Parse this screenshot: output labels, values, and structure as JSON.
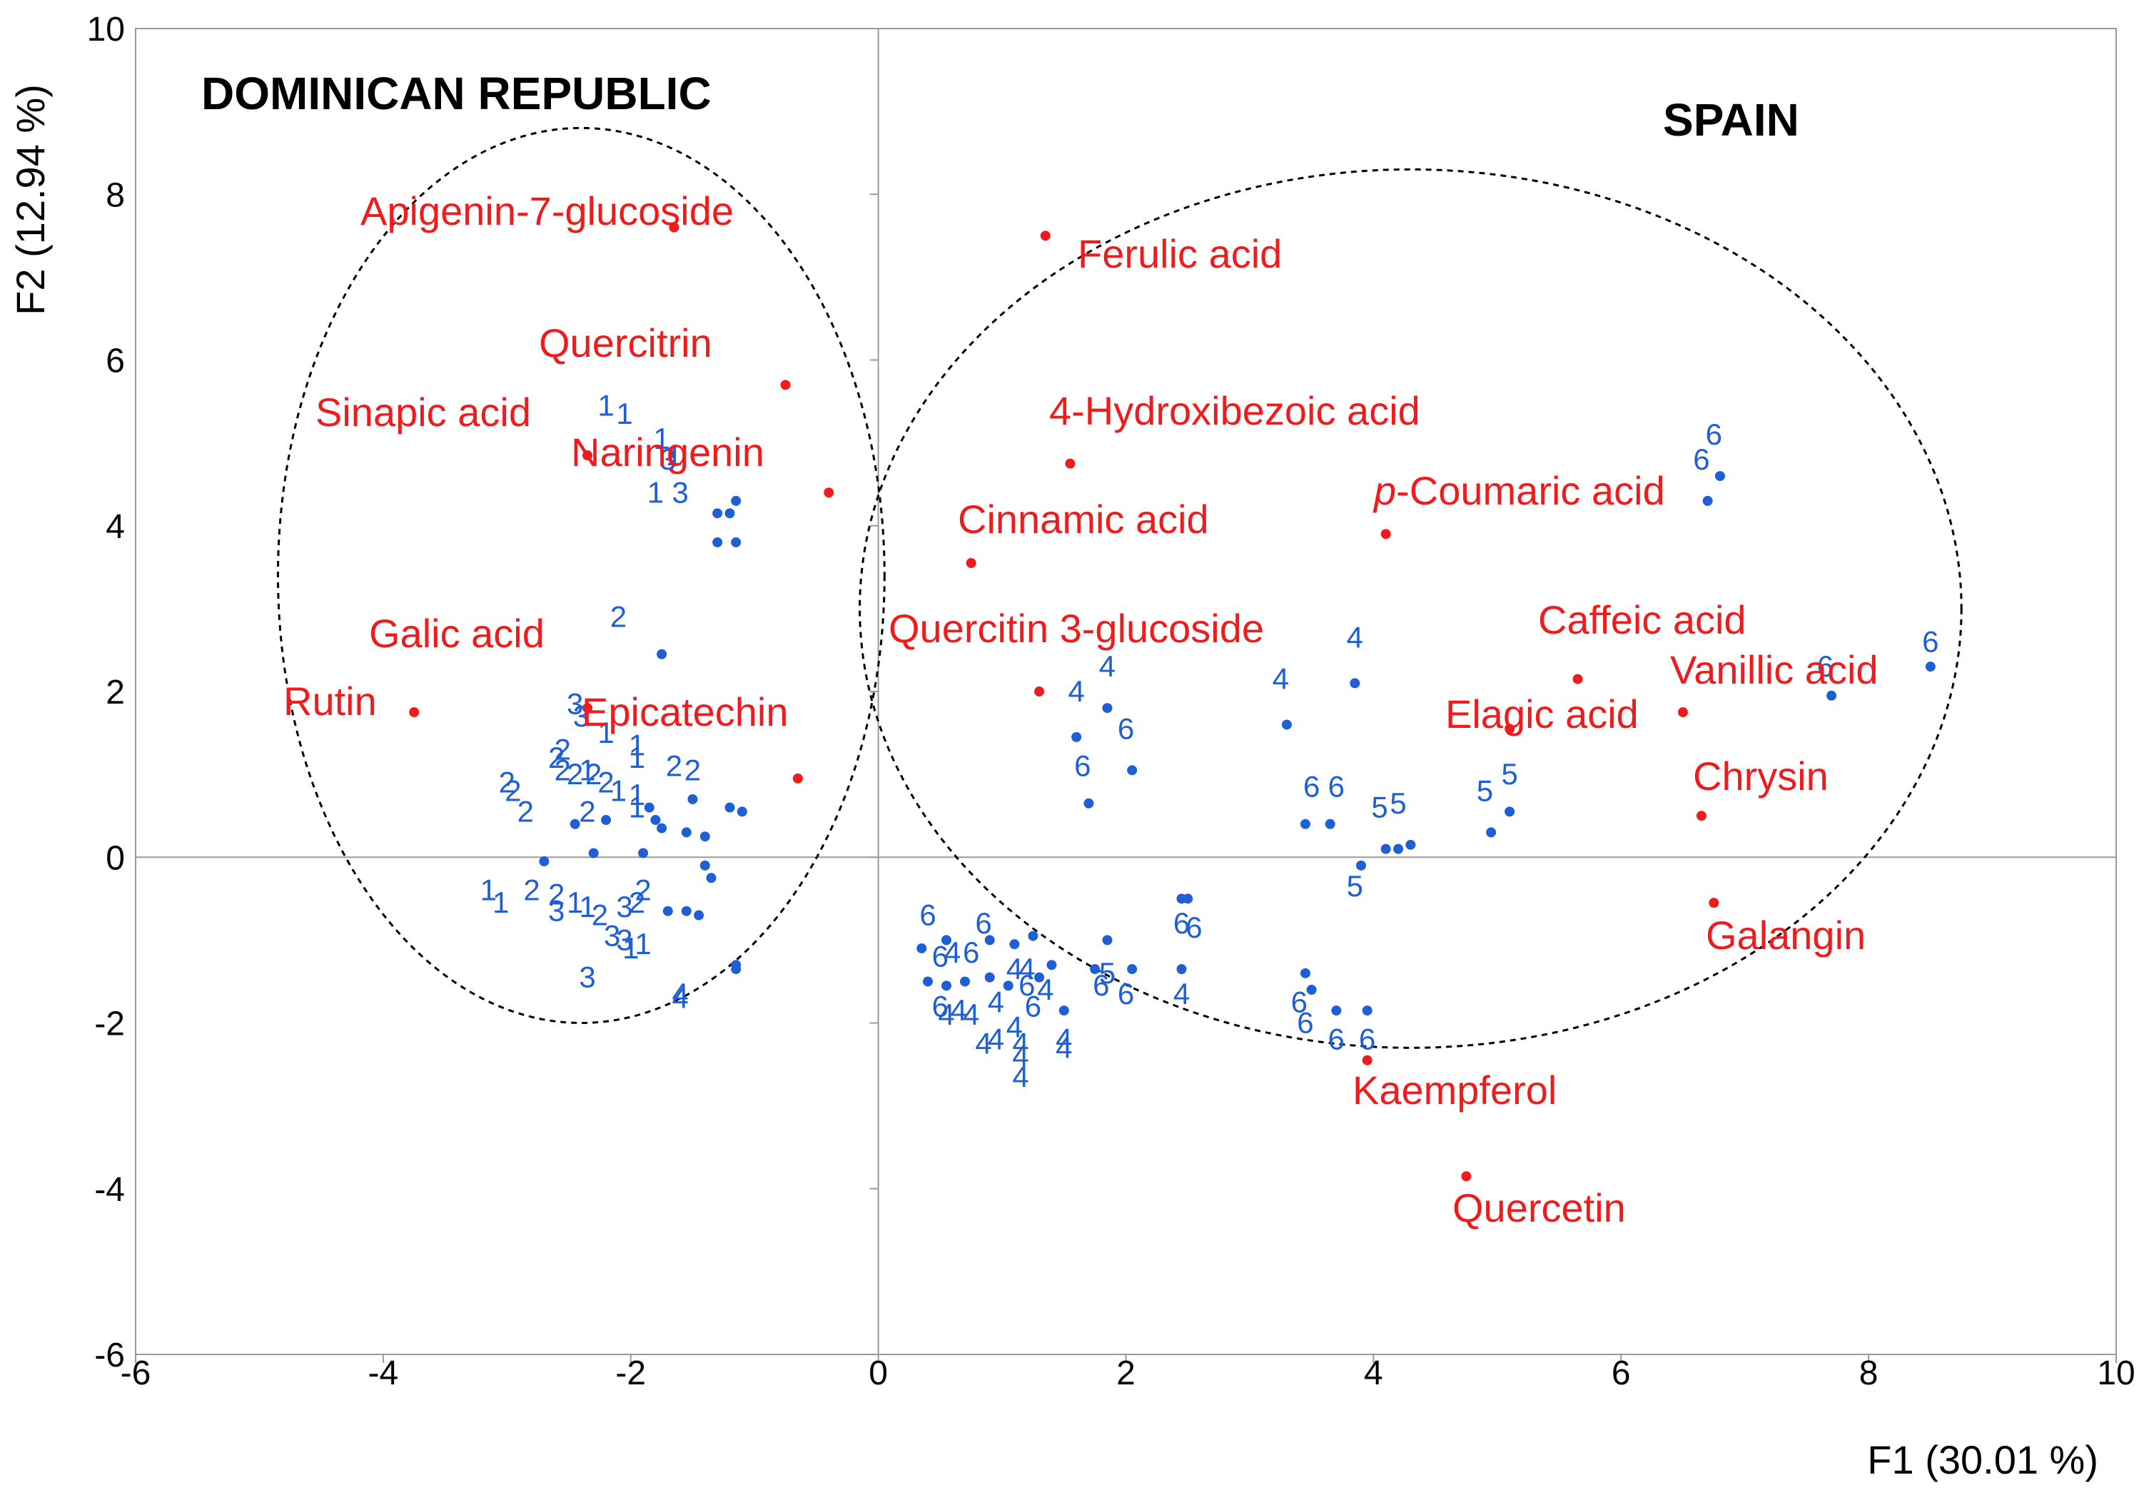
{
  "chart_data": {
    "type": "scatter",
    "title": "",
    "xlabel": "F1 (30.01 %)",
    "ylabel": "F2 (12.94 %)",
    "xlim": [
      -6,
      10
    ],
    "ylim": [
      -6,
      10
    ],
    "x_ticks": [
      "-6",
      "-4",
      "-2",
      "0",
      "2",
      "4",
      "6",
      "8",
      "10"
    ],
    "y_ticks": [
      "10",
      "8",
      "6",
      "4",
      "2",
      "0",
      "-2",
      "-4",
      "-6"
    ],
    "grid": false,
    "colors": {
      "variables": "#ee1c1c",
      "observations": "#1f5fd6",
      "axes": "#9a9a9a",
      "ellipse": "#000000"
    },
    "regions": [
      {
        "name": "DOMINICAN REPUBLIC",
        "center": [
          -2.4,
          3.4
        ],
        "radii": [
          2.45,
          5.4
        ]
      },
      {
        "name": "SPAIN",
        "center": [
          4.3,
          3.0
        ],
        "radii": [
          4.45,
          5.3
        ]
      }
    ],
    "variables": [
      {
        "name": "Apigenin-7-glucoside",
        "x": -1.65,
        "y": 7.6
      },
      {
        "name": "Quercitrin",
        "x": -0.75,
        "y": 5.7
      },
      {
        "name": "Sinapic acid",
        "x": -2.35,
        "y": 4.85
      },
      {
        "name": "Naringenin",
        "x": -0.4,
        "y": 4.4
      },
      {
        "name": "Galic acid",
        "x": -2.35,
        "y": 1.8
      },
      {
        "name": "Rutin",
        "x": -3.75,
        "y": 1.75
      },
      {
        "name": "Epicatechin",
        "x": -0.65,
        "y": 0.95
      },
      {
        "name": "Ferulic acid",
        "x": 1.35,
        "y": 7.5
      },
      {
        "name": "4-Hydroxibezoic acid",
        "x": 1.55,
        "y": 4.75
      },
      {
        "name": "Cinnamic acid",
        "x": 0.75,
        "y": 3.55
      },
      {
        "name": "Quercitin 3-glucoside",
        "x": 1.3,
        "y": 2.0
      },
      {
        "name": "p-Coumaric acid",
        "x": 4.1,
        "y": 3.9
      },
      {
        "name": "Caffeic acid",
        "x": 5.65,
        "y": 2.15
      },
      {
        "name": "Elagic acid",
        "x": 5.1,
        "y": 1.55
      },
      {
        "name": "Vanillic acid",
        "x": 6.5,
        "y": 1.75
      },
      {
        "name": "Chrysin",
        "x": 6.65,
        "y": 0.5
      },
      {
        "name": "Galangin",
        "x": 6.75,
        "y": -0.55
      },
      {
        "name": "Kaempferol",
        "x": 3.95,
        "y": -2.45
      },
      {
        "name": "Quercetin",
        "x": 4.75,
        "y": -3.85
      }
    ],
    "observations": [
      {
        "label": "1",
        "x": -2.2,
        "y": 5.45
      },
      {
        "label": "1",
        "x": -2.05,
        "y": 5.35
      },
      {
        "label": "1",
        "x": -1.75,
        "y": 5.05
      },
      {
        "label": "1",
        "x": -1.65,
        "y": 4.85
      },
      {
        "label": "3",
        "x": -1.7,
        "y": 4.8
      },
      {
        "label": "1",
        "x": -1.8,
        "y": 4.4
      },
      {
        "label": "3",
        "x": -1.6,
        "y": 4.4
      },
      {
        "label": "",
        "x": -1.3,
        "y": 4.15
      },
      {
        "label": "",
        "x": -1.2,
        "y": 4.15
      },
      {
        "label": "",
        "x": -1.15,
        "y": 4.3
      },
      {
        "label": "",
        "x": -1.3,
        "y": 3.8
      },
      {
        "label": "",
        "x": -1.15,
        "y": 3.8
      },
      {
        "label": "2",
        "x": -2.1,
        "y": 2.9
      },
      {
        "label": "",
        "x": -1.75,
        "y": 2.45
      },
      {
        "label": "3",
        "x": -2.45,
        "y": 1.85
      },
      {
        "label": "3",
        "x": -2.4,
        "y": 1.7
      },
      {
        "label": "1",
        "x": -2.2,
        "y": 1.5
      },
      {
        "label": "2",
        "x": -2.55,
        "y": 1.3
      },
      {
        "label": "2",
        "x": -2.6,
        "y": 1.2
      },
      {
        "label": "2",
        "x": -2.55,
        "y": 1.05
      },
      {
        "label": "2",
        "x": -2.45,
        "y": 1.0
      },
      {
        "label": "2",
        "x": -2.3,
        "y": 1.0
      },
      {
        "label": "1",
        "x": -2.35,
        "y": 1.05
      },
      {
        "label": "2",
        "x": -2.2,
        "y": 0.9
      },
      {
        "label": "1",
        "x": -1.95,
        "y": 1.35
      },
      {
        "label": "1",
        "x": -1.95,
        "y": 1.2
      },
      {
        "label": "2",
        "x": -1.65,
        "y": 1.1
      },
      {
        "label": "2",
        "x": -1.5,
        "y": 1.05
      },
      {
        "label": "2",
        "x": -3.0,
        "y": 0.9
      },
      {
        "label": "2",
        "x": -2.95,
        "y": 0.8
      },
      {
        "label": "2",
        "x": -2.85,
        "y": 0.55
      },
      {
        "label": "2",
        "x": -2.35,
        "y": 0.55
      },
      {
        "label": "1",
        "x": -2.1,
        "y": 0.8
      },
      {
        "label": "1",
        "x": -1.95,
        "y": 0.75
      },
      {
        "label": "1",
        "x": -1.95,
        "y": 0.6
      },
      {
        "label": "",
        "x": -1.85,
        "y": 0.6
      },
      {
        "label": "",
        "x": -1.8,
        "y": 0.45
      },
      {
        "label": "",
        "x": -1.75,
        "y": 0.35
      },
      {
        "label": "",
        "x": -1.5,
        "y": 0.7
      },
      {
        "label": "",
        "x": -1.55,
        "y": 0.3
      },
      {
        "label": "",
        "x": -1.4,
        "y": 0.25
      },
      {
        "label": "",
        "x": -1.2,
        "y": 0.6
      },
      {
        "label": "",
        "x": -1.1,
        "y": 0.55
      },
      {
        "label": "",
        "x": -2.45,
        "y": 0.4
      },
      {
        "label": "",
        "x": -2.2,
        "y": 0.45
      },
      {
        "label": "",
        "x": -1.9,
        "y": 0.05
      },
      {
        "label": "",
        "x": -2.3,
        "y": 0.05
      },
      {
        "label": "",
        "x": -2.7,
        "y": -0.05
      },
      {
        "label": "",
        "x": -1.4,
        "y": -0.1
      },
      {
        "label": "",
        "x": -1.35,
        "y": -0.25
      },
      {
        "label": "1",
        "x": -3.15,
        "y": -0.4
      },
      {
        "label": "1",
        "x": -3.05,
        "y": -0.55
      },
      {
        "label": "2",
        "x": -2.8,
        "y": -0.4
      },
      {
        "label": "2",
        "x": -2.6,
        "y": -0.45
      },
      {
        "label": "1",
        "x": -2.45,
        "y": -0.55
      },
      {
        "label": "1",
        "x": -2.35,
        "y": -0.6
      },
      {
        "label": "3",
        "x": -2.6,
        "y": -0.65
      },
      {
        "label": "2",
        "x": -2.25,
        "y": -0.7
      },
      {
        "label": "3",
        "x": -2.05,
        "y": -0.6
      },
      {
        "label": "2",
        "x": -1.95,
        "y": -0.55
      },
      {
        "label": "2",
        "x": -1.9,
        "y": -0.4
      },
      {
        "label": "",
        "x": -1.7,
        "y": -0.65
      },
      {
        "label": "",
        "x": -1.55,
        "y": -0.65
      },
      {
        "label": "",
        "x": -1.45,
        "y": -0.7
      },
      {
        "label": "3",
        "x": -2.15,
        "y": -0.95
      },
      {
        "label": "3",
        "x": -2.05,
        "y": -1.0
      },
      {
        "label": "1",
        "x": -2.0,
        "y": -1.1
      },
      {
        "label": "1",
        "x": -1.9,
        "y": -1.05
      },
      {
        "label": "3",
        "x": -2.35,
        "y": -1.45
      },
      {
        "label": "",
        "x": -1.15,
        "y": -1.35
      },
      {
        "label": "",
        "x": -1.15,
        "y": -1.3
      },
      {
        "label": "4",
        "x": -1.6,
        "y": -1.65
      },
      {
        "label": "4",
        "x": -1.6,
        "y": -1.7
      },
      {
        "label": "4",
        "x": 1.85,
        "y": 2.3
      },
      {
        "label": "4",
        "x": 1.6,
        "y": 2.0
      },
      {
        "label": "6",
        "x": 2.0,
        "y": 1.55
      },
      {
        "label": "6",
        "x": 1.65,
        "y": 1.1
      },
      {
        "label": "",
        "x": 1.85,
        "y": 1.8
      },
      {
        "label": "",
        "x": 1.6,
        "y": 1.45
      },
      {
        "label": "",
        "x": 2.05,
        "y": 1.05
      },
      {
        "label": "",
        "x": 1.7,
        "y": 0.65
      },
      {
        "label": "4",
        "x": 3.25,
        "y": 2.15
      },
      {
        "label": "4",
        "x": 3.85,
        "y": 2.65
      },
      {
        "label": "",
        "x": 3.3,
        "y": 1.6
      },
      {
        "label": "",
        "x": 3.85,
        "y": 2.1
      },
      {
        "label": "6",
        "x": 3.5,
        "y": 0.85
      },
      {
        "label": "6",
        "x": 3.7,
        "y": 0.85
      },
      {
        "label": "",
        "x": 3.45,
        "y": 0.4
      },
      {
        "label": "",
        "x": 3.65,
        "y": 0.4
      },
      {
        "label": "5",
        "x": 4.05,
        "y": 0.6
      },
      {
        "label": "5",
        "x": 4.2,
        "y": 0.65
      },
      {
        "label": "",
        "x": 4.1,
        "y": 0.1
      },
      {
        "label": "",
        "x": 4.2,
        "y": 0.1
      },
      {
        "label": "",
        "x": 4.3,
        "y": 0.15
      },
      {
        "label": "",
        "x": 3.9,
        "y": -0.1
      },
      {
        "label": "5",
        "x": 3.85,
        "y": -0.35
      },
      {
        "label": "5",
        "x": 4.9,
        "y": 0.8
      },
      {
        "label": "5",
        "x": 5.1,
        "y": 1.0
      },
      {
        "label": "",
        "x": 4.95,
        "y": 0.3
      },
      {
        "label": "",
        "x": 5.1,
        "y": 0.55
      },
      {
        "label": "6",
        "x": 6.65,
        "y": 4.8
      },
      {
        "label": "6",
        "x": 6.75,
        "y": 5.1
      },
      {
        "label": "",
        "x": 6.8,
        "y": 4.6
      },
      {
        "label": "",
        "x": 6.7,
        "y": 4.3
      },
      {
        "label": "6",
        "x": 7.65,
        "y": 2.3
      },
      {
        "label": "6",
        "x": 8.5,
        "y": 2.6
      },
      {
        "label": "",
        "x": 7.7,
        "y": 1.95
      },
      {
        "label": "",
        "x": 8.5,
        "y": 2.3
      },
      {
        "label": "6",
        "x": 0.4,
        "y": -0.7
      },
      {
        "label": "6",
        "x": 0.85,
        "y": -0.8
      },
      {
        "label": "6",
        "x": 0.5,
        "y": -1.2
      },
      {
        "label": "4",
        "x": 0.6,
        "y": -1.15
      },
      {
        "label": "6",
        "x": 0.75,
        "y": -1.15
      },
      {
        "label": "4",
        "x": 1.1,
        "y": -1.35
      },
      {
        "label": "4",
        "x": 1.2,
        "y": -1.35
      },
      {
        "label": "6",
        "x": 1.2,
        "y": -1.55
      },
      {
        "label": "4",
        "x": 1.35,
        "y": -1.6
      },
      {
        "label": "6",
        "x": 0.5,
        "y": -1.8
      },
      {
        "label": "4",
        "x": 0.55,
        "y": -1.9
      },
      {
        "label": "4",
        "x": 0.65,
        "y": -1.85
      },
      {
        "label": "4",
        "x": 0.75,
        "y": -1.9
      },
      {
        "label": "4",
        "x": 0.95,
        "y": -1.75
      },
      {
        "label": "4",
        "x": 1.1,
        "y": -2.05
      },
      {
        "label": "6",
        "x": 1.25,
        "y": -1.8
      },
      {
        "label": "4",
        "x": 0.85,
        "y": -2.25
      },
      {
        "label": "4",
        "x": 0.95,
        "y": -2.2
      },
      {
        "label": "4",
        "x": 1.15,
        "y": -2.25
      },
      {
        "label": "4",
        "x": 1.15,
        "y": -2.4
      },
      {
        "label": "4",
        "x": 1.5,
        "y": -2.2
      },
      {
        "label": "4",
        "x": 1.5,
        "y": -2.3
      },
      {
        "label": "4",
        "x": 1.15,
        "y": -2.65
      },
      {
        "label": "5",
        "x": 1.85,
        "y": -1.4
      },
      {
        "label": "6",
        "x": 1.8,
        "y": -1.55
      },
      {
        "label": "6",
        "x": 2.0,
        "y": -1.65
      },
      {
        "label": "6",
        "x": 2.45,
        "y": -0.8
      },
      {
        "label": "6",
        "x": 2.55,
        "y": -0.85
      },
      {
        "label": "4",
        "x": 2.45,
        "y": -1.65
      },
      {
        "label": "6",
        "x": 3.4,
        "y": -1.75
      },
      {
        "label": "6",
        "x": 3.45,
        "y": -2.0
      },
      {
        "label": "6",
        "x": 3.7,
        "y": -2.2
      },
      {
        "label": "6",
        "x": 3.95,
        "y": -2.2
      },
      {
        "label": "",
        "x": 0.35,
        "y": -1.1
      },
      {
        "label": "",
        "x": 0.55,
        "y": -1.0
      },
      {
        "label": "",
        "x": 0.9,
        "y": -1.0
      },
      {
        "label": "",
        "x": 1.1,
        "y": -1.05
      },
      {
        "label": "",
        "x": 1.25,
        "y": -0.95
      },
      {
        "label": "",
        "x": 0.4,
        "y": -1.5
      },
      {
        "label": "",
        "x": 0.55,
        "y": -1.55
      },
      {
        "label": "",
        "x": 0.7,
        "y": -1.5
      },
      {
        "label": "",
        "x": 0.9,
        "y": -1.45
      },
      {
        "label": "",
        "x": 1.05,
        "y": -1.55
      },
      {
        "label": "",
        "x": 1.3,
        "y": -1.45
      },
      {
        "label": "",
        "x": 1.4,
        "y": -1.3
      },
      {
        "label": "",
        "x": 1.5,
        "y": -1.85
      },
      {
        "label": "",
        "x": 1.85,
        "y": -1.0
      },
      {
        "label": "",
        "x": 1.75,
        "y": -1.35
      },
      {
        "label": "",
        "x": 2.05,
        "y": -1.35
      },
      {
        "label": "",
        "x": 2.45,
        "y": -0.5
      },
      {
        "label": "",
        "x": 2.5,
        "y": -0.5
      },
      {
        "label": "",
        "x": 2.45,
        "y": -1.35
      },
      {
        "label": "",
        "x": 3.45,
        "y": -1.4
      },
      {
        "label": "",
        "x": 3.5,
        "y": -1.6
      },
      {
        "label": "",
        "x": 3.7,
        "y": -1.85
      },
      {
        "label": "",
        "x": 3.95,
        "y": -1.85
      }
    ]
  }
}
